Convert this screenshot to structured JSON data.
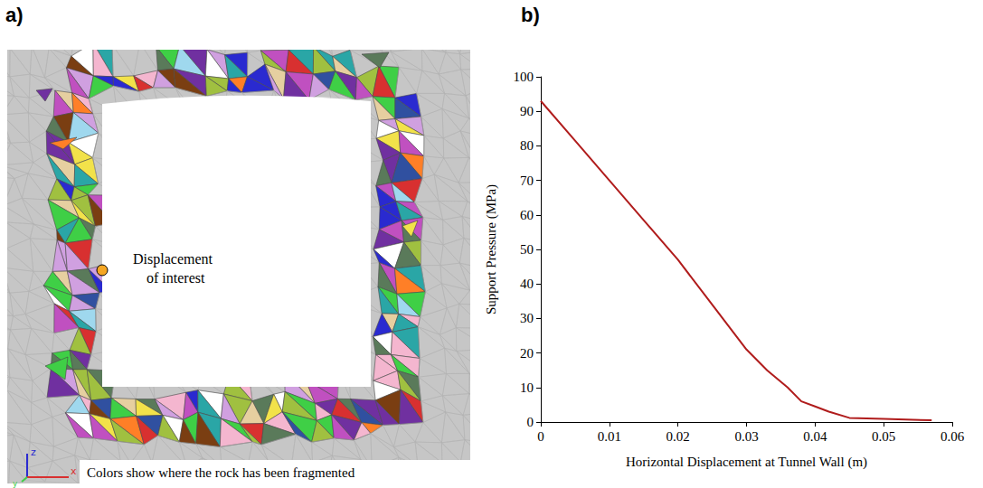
{
  "figure": {
    "panel_a": {
      "label": "a)",
      "annotation": "Displacement of interest",
      "caption": "Colors show where the rock has been fragmented",
      "axis_letters": [
        "z",
        "y",
        "x"
      ]
    },
    "panel_b": {
      "label": "b)"
    }
  },
  "chart_data": {
    "type": "line",
    "x_label": "Horizontal Displacement at Tunnel Wall (m)",
    "y_label": "Support Pressure (MPa)",
    "x": [
      0,
      0.005,
      0.01,
      0.015,
      0.02,
      0.025,
      0.03,
      0.033,
      0.036,
      0.038,
      0.04,
      0.042,
      0.045,
      0.05,
      0.057
    ],
    "values": [
      93,
      81.5,
      70,
      58.5,
      47,
      34,
      21,
      15,
      10,
      6,
      4.5,
      3,
      1.2,
      0.9,
      0.5
    ],
    "color": "#b01c1c",
    "xlim": [
      0,
      0.06
    ],
    "xticks": [
      0,
      0.01,
      0.02,
      0.03,
      0.04,
      0.05,
      0.06
    ],
    "ylim": [
      0,
      100
    ],
    "yticks": [
      0,
      10,
      20,
      30,
      40,
      50,
      60,
      70,
      80,
      90,
      100
    ],
    "grid": false
  }
}
